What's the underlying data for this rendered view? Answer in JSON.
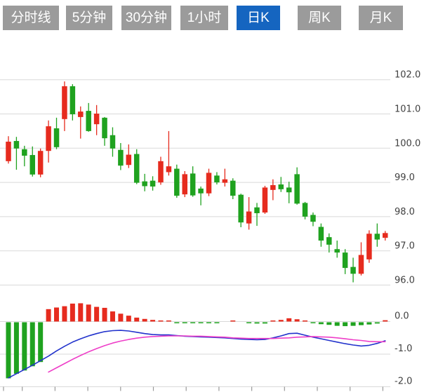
{
  "tabs": [
    {
      "name": "tab-timeline",
      "label": "分时线",
      "active": false
    },
    {
      "name": "tab-5min",
      "label": "5分钟",
      "active": false
    },
    {
      "name": "tab-30min",
      "label": "30分钟",
      "active": false
    },
    {
      "name": "tab-1hour",
      "label": "1小时",
      "active": false
    },
    {
      "name": "tab-daily",
      "label": "日K",
      "active": true
    },
    {
      "name": "tab-weekly",
      "label": "周K",
      "active": false
    },
    {
      "name": "tab-monthly",
      "label": "月K",
      "active": false
    }
  ],
  "colors": {
    "up": "#e62b1e",
    "down": "#1fa21f",
    "dif_line": "#2233cc",
    "dea_line": "#ee3ec8",
    "tab_bg": "#9b9b9b",
    "tab_active_bg": "#1565c0",
    "tab_text": "#ffffff",
    "grid": "#d9d9d9",
    "axis_text": "#404040",
    "axis_tick": "#9a9a9a"
  },
  "chart_data": {
    "type": "candlestick",
    "note": "CN convention: red = up candle, green = down candle",
    "upper_panel": {
      "ylim": [
        95.85,
        102.35
      ],
      "grid": true,
      "y_ticks": [
        {
          "v": 102,
          "label": "102.0"
        },
        {
          "v": 101,
          "label": "101.0"
        },
        {
          "v": 100,
          "label": "100.0"
        },
        {
          "v": 99,
          "label": "99.0"
        },
        {
          "v": 98,
          "label": "98.0"
        },
        {
          "v": 97,
          "label": "97.0"
        },
        {
          "v": 96,
          "label": "96.0"
        }
      ],
      "candles": [
        {
          "o": 99.62,
          "h": 100.35,
          "l": 99.55,
          "c": 100.19
        },
        {
          "o": 100.21,
          "h": 100.33,
          "l": 99.37,
          "c": 99.99
        },
        {
          "o": 99.97,
          "h": 100.07,
          "l": 99.47,
          "c": 99.78
        },
        {
          "o": 99.8,
          "h": 100.05,
          "l": 99.17,
          "c": 99.23
        },
        {
          "o": 99.23,
          "h": 99.99,
          "l": 99.15,
          "c": 99.92
        },
        {
          "o": 99.92,
          "h": 100.81,
          "l": 99.58,
          "c": 100.64
        },
        {
          "o": 100.58,
          "h": 100.89,
          "l": 99.97,
          "c": 100.03
        },
        {
          "o": 100.85,
          "h": 101.95,
          "l": 100.5,
          "c": 101.81
        },
        {
          "o": 101.81,
          "h": 101.87,
          "l": 100.81,
          "c": 100.99
        },
        {
          "o": 100.91,
          "h": 101.22,
          "l": 100.28,
          "c": 101.07
        },
        {
          "o": 101.09,
          "h": 101.32,
          "l": 100.48,
          "c": 100.5
        },
        {
          "o": 100.7,
          "h": 101.26,
          "l": 100.38,
          "c": 101.01
        },
        {
          "o": 100.89,
          "h": 100.91,
          "l": 100.07,
          "c": 100.29
        },
        {
          "o": 100.38,
          "h": 100.61,
          "l": 99.75,
          "c": 99.99
        },
        {
          "o": 99.95,
          "h": 100.15,
          "l": 99.36,
          "c": 99.49
        },
        {
          "o": 99.51,
          "h": 100.11,
          "l": 99.42,
          "c": 99.81
        },
        {
          "o": 99.83,
          "h": 99.97,
          "l": 98.95,
          "c": 98.99
        },
        {
          "o": 99.03,
          "h": 99.25,
          "l": 98.74,
          "c": 98.89
        },
        {
          "o": 99.05,
          "h": 99.18,
          "l": 98.76,
          "c": 98.88
        },
        {
          "o": 99.0,
          "h": 99.75,
          "l": 98.93,
          "c": 99.62
        },
        {
          "o": 99.3,
          "h": 100.5,
          "l": 99.2,
          "c": 99.47
        },
        {
          "o": 99.4,
          "h": 99.52,
          "l": 98.55,
          "c": 98.61
        },
        {
          "o": 98.65,
          "h": 99.33,
          "l": 98.57,
          "c": 99.24
        },
        {
          "o": 99.26,
          "h": 99.47,
          "l": 98.58,
          "c": 98.62
        },
        {
          "o": 98.82,
          "h": 98.88,
          "l": 98.33,
          "c": 98.68
        },
        {
          "o": 98.68,
          "h": 99.4,
          "l": 98.6,
          "c": 99.28
        },
        {
          "o": 99.2,
          "h": 99.3,
          "l": 98.94,
          "c": 99.0
        },
        {
          "o": 98.99,
          "h": 99.4,
          "l": 98.88,
          "c": 99.09
        },
        {
          "o": 99.05,
          "h": 99.12,
          "l": 98.51,
          "c": 98.61
        },
        {
          "o": 98.64,
          "h": 98.67,
          "l": 97.69,
          "c": 97.83
        },
        {
          "o": 97.8,
          "h": 98.57,
          "l": 97.62,
          "c": 98.15
        },
        {
          "o": 98.27,
          "h": 98.4,
          "l": 97.73,
          "c": 98.1
        },
        {
          "o": 98.12,
          "h": 98.9,
          "l": 98.08,
          "c": 98.85
        },
        {
          "o": 98.78,
          "h": 99.09,
          "l": 98.48,
          "c": 98.92
        },
        {
          "o": 98.94,
          "h": 99.16,
          "l": 98.72,
          "c": 98.8
        },
        {
          "o": 98.85,
          "h": 99.02,
          "l": 98.39,
          "c": 98.71
        },
        {
          "o": 99.24,
          "h": 99.44,
          "l": 98.35,
          "c": 98.38
        },
        {
          "o": 98.4,
          "h": 98.43,
          "l": 97.92,
          "c": 98.0
        },
        {
          "o": 98.05,
          "h": 98.12,
          "l": 97.72,
          "c": 97.85
        },
        {
          "o": 97.7,
          "h": 97.8,
          "l": 97.12,
          "c": 97.3
        },
        {
          "o": 97.4,
          "h": 97.51,
          "l": 96.95,
          "c": 97.18
        },
        {
          "o": 97.05,
          "h": 97.3,
          "l": 96.8,
          "c": 96.95
        },
        {
          "o": 96.95,
          "h": 97.05,
          "l": 96.32,
          "c": 96.5
        },
        {
          "o": 96.53,
          "h": 96.8,
          "l": 96.08,
          "c": 96.33
        },
        {
          "o": 96.33,
          "h": 97.25,
          "l": 96.28,
          "c": 96.88
        },
        {
          "o": 96.75,
          "h": 97.6,
          "l": 96.65,
          "c": 97.5
        },
        {
          "o": 97.5,
          "h": 97.8,
          "l": 97.12,
          "c": 97.33
        },
        {
          "o": 97.38,
          "h": 97.58,
          "l": 97.3,
          "c": 97.52
        }
      ]
    },
    "lower_panel": {
      "indicator": "MACD",
      "ylim": [
        -2.15,
        0.3
      ],
      "y_ticks": [
        {
          "v": 0,
          "label": "0.0"
        },
        {
          "v": -1,
          "label": "-1.0"
        },
        {
          "v": -2,
          "label": "-2.0"
        }
      ],
      "histogram": [
        -1.72,
        -1.58,
        -1.48,
        -1.35,
        -1.22,
        0.38,
        0.43,
        0.47,
        0.55,
        0.56,
        0.52,
        0.45,
        0.42,
        0.31,
        0.24,
        0.18,
        0.12,
        0.08,
        0.05,
        0.03,
        0.02,
        -0.02,
        -0.03,
        -0.03,
        -0.03,
        -0.03,
        -0.02,
        0.0,
        0.02,
        -0.01,
        -0.03,
        -0.04,
        -0.04,
        0.03,
        0.05,
        0.1,
        0.07,
        0.03,
        -0.03,
        -0.06,
        -0.08,
        -0.11,
        -0.12,
        -0.11,
        -0.09,
        -0.07,
        -0.04,
        0.04
      ],
      "dif": [
        -1.73,
        -1.6,
        -1.47,
        -1.34,
        -1.2,
        -1.06,
        -0.9,
        -0.76,
        -0.63,
        -0.53,
        -0.44,
        -0.37,
        -0.31,
        -0.28,
        -0.27,
        -0.29,
        -0.33,
        -0.37,
        -0.4,
        -0.41,
        -0.41,
        -0.43,
        -0.45,
        -0.46,
        -0.47,
        -0.48,
        -0.49,
        -0.5,
        -0.52,
        -0.54,
        -0.55,
        -0.56,
        -0.55,
        -0.5,
        -0.44,
        -0.37,
        -0.36,
        -0.42,
        -0.48,
        -0.53,
        -0.58,
        -0.63,
        -0.68,
        -0.72,
        -0.75,
        -0.73,
        -0.67,
        -0.59
      ],
      "dea": [
        null,
        null,
        null,
        null,
        null,
        -1.55,
        -1.42,
        -1.29,
        -1.16,
        -1.04,
        -0.93,
        -0.83,
        -0.74,
        -0.66,
        -0.6,
        -0.55,
        -0.51,
        -0.48,
        -0.46,
        -0.45,
        -0.44,
        -0.44,
        -0.44,
        -0.45,
        -0.45,
        -0.46,
        -0.47,
        -0.48,
        -0.5,
        -0.51,
        -0.52,
        -0.52,
        -0.52,
        -0.52,
        -0.51,
        -0.5,
        -0.48,
        -0.47,
        -0.46,
        -0.47,
        -0.48,
        -0.5,
        -0.53,
        -0.56,
        -0.58,
        -0.61,
        -0.62,
        -0.62
      ]
    }
  }
}
